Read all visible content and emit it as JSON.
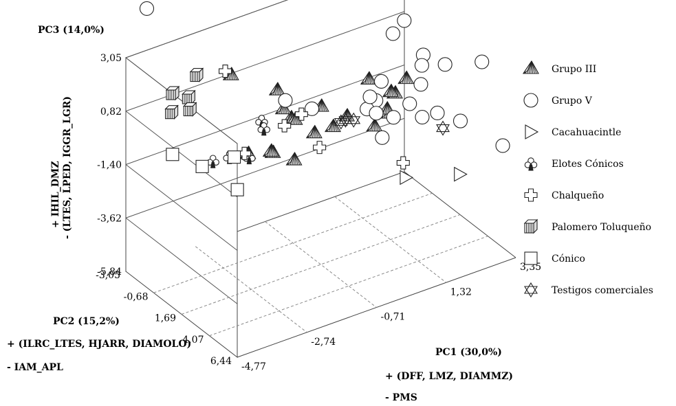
{
  "chart_data": {
    "type": "scatter",
    "projection": "3d",
    "title": "",
    "axes": {
      "pc1": {
        "label": "PC1 (30,0%)",
        "sublabel_plus": "+ (DFF, LMZ, DIAMMZ)",
        "sublabel_minus": "- PMS",
        "ticks": [
          "-4,77",
          "-2,74",
          "-0,71",
          "1,32",
          "3,35"
        ],
        "range": [
          -4.77,
          3.35
        ]
      },
      "pc2": {
        "label": "PC2 (15,2%)",
        "sublabel_plus": "+ (ILRC_LTES, HJARR, DIAMOLO)",
        "sublabel_minus": "- IAM_APL",
        "ticks": [
          "-3,05",
          "-0,68",
          "1,69",
          "4,07",
          "6,44"
        ],
        "range": [
          -3.05,
          6.44
        ]
      },
      "pc3": {
        "label": "PC3 (14,0%)",
        "sublabel_plus": "+ IHIL_DMZ",
        "sublabel_minus": "- (LTES, LPED, IGGR_LGR)",
        "ticks": [
          "-5,84",
          "-3,62",
          "-1,40",
          "0,82",
          "3,05"
        ],
        "range": [
          -5.84,
          3.05
        ]
      }
    },
    "grid": true,
    "legend_position": "right",
    "legend": [
      {
        "name": "Grupo III",
        "marker": "pyramid"
      },
      {
        "name": "Grupo V",
        "marker": "circle"
      },
      {
        "name": "Cacahuacintle",
        "marker": "triangle-right"
      },
      {
        "name": "Elotes Cónicos",
        "marker": "club"
      },
      {
        "name": "Chalqueño",
        "marker": "cross"
      },
      {
        "name": "Palomero Toluqueño",
        "marker": "cube"
      },
      {
        "name": "Cónico",
        "marker": "square"
      },
      {
        "name": "Testigos comerciales",
        "marker": "star6"
      }
    ],
    "series": [
      {
        "name": "Grupo III",
        "marker": "pyramid",
        "points": [
          [
            1.0,
            3.0,
            0.9
          ],
          [
            -0.3,
            2.7,
            0.5
          ],
          [
            1.6,
            2.2,
            0.9
          ],
          [
            -1.2,
            -0.6,
            0.8
          ],
          [
            -1.6,
            0.2,
            -1.3
          ],
          [
            -0.9,
            -0.3,
            -0.4
          ],
          [
            -0.7,
            1.1,
            -0.6
          ],
          [
            0.6,
            3.6,
            0.5
          ],
          [
            0.8,
            2.9,
            0.3
          ],
          [
            -0.6,
            2.4,
            0.1
          ],
          [
            -1.8,
            2.6,
            -0.6
          ],
          [
            0.3,
            3.3,
            0.0
          ],
          [
            -0.2,
            -3.0,
            -1.4
          ],
          [
            1.4,
            -0.4,
            0.0
          ],
          [
            1.7,
            0.6,
            -0.3
          ],
          [
            -0.5,
            1.1,
            0.4
          ],
          [
            -2.1,
            1.5,
            -0.5
          ],
          [
            -2.8,
            1.6,
            -0.2
          ],
          [
            -2.1,
            -1.9,
            1.4
          ],
          [
            -1.3,
            1.2,
            0.3
          ]
        ]
      },
      {
        "name": "Grupo V",
        "marker": "circle",
        "points": [
          [
            -5.1,
            -0.3,
            6.3
          ],
          [
            2.2,
            0.3,
            2.3
          ],
          [
            1.7,
            0.8,
            2.2
          ],
          [
            2.0,
            2.5,
            1.8
          ],
          [
            2.5,
            2.9,
            1.3
          ],
          [
            3.3,
            3.7,
            1.3
          ],
          [
            2.2,
            1.8,
            1.0
          ],
          [
            -1.3,
            0.4,
            0.8
          ],
          [
            2.0,
            2.3,
            0.5
          ],
          [
            1.9,
            4.0,
            0.0
          ],
          [
            -0.8,
            1.2,
            0.5
          ],
          [
            1.0,
            1.4,
            0.0
          ],
          [
            1.6,
            0.1,
            0.0
          ],
          [
            1.4,
            3.1,
            0.3
          ],
          [
            1.1,
            2.6,
            -0.3
          ],
          [
            0.6,
            1.8,
            0.0
          ],
          [
            1.1,
            0.6,
            -0.2
          ],
          [
            2.4,
            4.5,
            -0.4
          ],
          [
            3.6,
            4.6,
            -2.0
          ],
          [
            0.6,
            3.1,
            -0.7
          ],
          [
            0.8,
            2.0,
            -0.2
          ],
          [
            1.8,
            3.0,
            -0.5
          ]
        ]
      },
      {
        "name": "Cacahuacintle",
        "marker": "triangle-right",
        "points": [
          [
            3.0,
            2.7,
            -3.6
          ],
          [
            1.9,
            1.3,
            -3.7
          ]
        ]
      },
      {
        "name": "Elotes Cónicos",
        "marker": "club",
        "points": [
          [
            -2.3,
            1.3,
            0.8
          ],
          [
            -3.0,
            0.6,
            -0.6
          ],
          [
            -2.2,
            1.2,
            0.4
          ],
          [
            -2.8,
            1.7,
            -0.3
          ],
          [
            -3.0,
            -0.8,
            -1.3
          ]
        ]
      },
      {
        "name": "Chalqueño",
        "marker": "cross",
        "points": [
          [
            -1.4,
            3.6,
            0.1
          ],
          [
            -2.3,
            -1.8,
            1.7
          ],
          [
            -1.6,
            1.2,
            0.2
          ],
          [
            0.8,
            4.3,
            -1.4
          ],
          [
            -2.8,
            1.3,
            -0.3
          ],
          [
            -0.9,
            0.6,
            0.1
          ]
        ]
      },
      {
        "name": "Palomero Toluqueño",
        "marker": "cube",
        "points": [
          [
            -3.1,
            -1.9,
            1.9
          ],
          [
            -3.4,
            -1.7,
            1.2
          ],
          [
            -3.5,
            -1.3,
            0.9
          ],
          [
            -4.0,
            -1.4,
            1.0
          ],
          [
            -3.8,
            -1.9,
            1.5
          ]
        ]
      },
      {
        "name": "Cónico",
        "marker": "square",
        "points": [
          [
            -3.7,
            -2.2,
            -1.2
          ],
          [
            -2.8,
            -2.3,
            -2.2
          ],
          [
            -2.7,
            0.4,
            -2.2
          ],
          [
            -3.1,
            1.3,
            -0.3
          ]
        ]
      },
      {
        "name": "Testigos comerciales",
        "marker": "star6",
        "points": [
          [
            -0.2,
            3.0,
            0.4
          ],
          [
            -0.5,
            2.8,
            0.4
          ],
          [
            -0.3,
            2.6,
            0.3
          ],
          [
            2.3,
            3.3,
            -1.1
          ]
        ]
      }
    ]
  }
}
